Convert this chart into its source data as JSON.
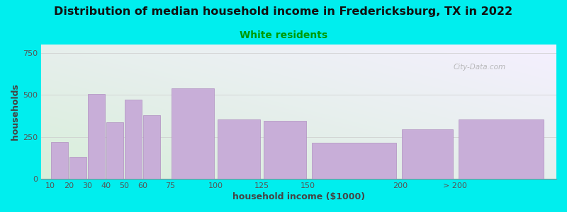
{
  "title": "Distribution of median household income in Fredericksburg, TX in 2022",
  "subtitle": "White residents",
  "xlabel": "household income ($1000)",
  "ylabel": "households",
  "background_color": "#00EEEE",
  "bar_color": "#c8aed8",
  "bar_edge_color": "#b090c0",
  "title_fontsize": 11.5,
  "subtitle_fontsize": 10,
  "subtitle_color": "#009900",
  "categories": [
    "10",
    "20",
    "30",
    "40",
    "50",
    "60",
    "75",
    "100",
    "125",
    "150",
    "200",
    "> 200"
  ],
  "bar_lefts": [
    10,
    20,
    30,
    40,
    50,
    60,
    75,
    100,
    125,
    150,
    200,
    230
  ],
  "bar_widths": [
    10,
    10,
    10,
    10,
    10,
    10,
    25,
    25,
    25,
    50,
    30,
    50
  ],
  "bar_values": [
    220,
    130,
    505,
    335,
    470,
    380,
    540,
    355,
    345,
    215,
    295,
    355
  ],
  "ylim": [
    0,
    800
  ],
  "yticks": [
    0,
    250,
    500,
    750
  ],
  "xtick_positions": [
    10,
    20,
    30,
    40,
    50,
    60,
    75,
    100,
    125,
    150,
    200,
    230
  ],
  "xtick_labels": [
    "10",
    "20",
    "30",
    "40",
    "50",
    "60",
    "75",
    "100",
    "125",
    "150",
    "200",
    "> 200"
  ],
  "watermark": "City-Data.com",
  "plot_bg_color_topleft": "#d8eeda",
  "plot_bg_color_bottomright": "#f5f0ff"
}
